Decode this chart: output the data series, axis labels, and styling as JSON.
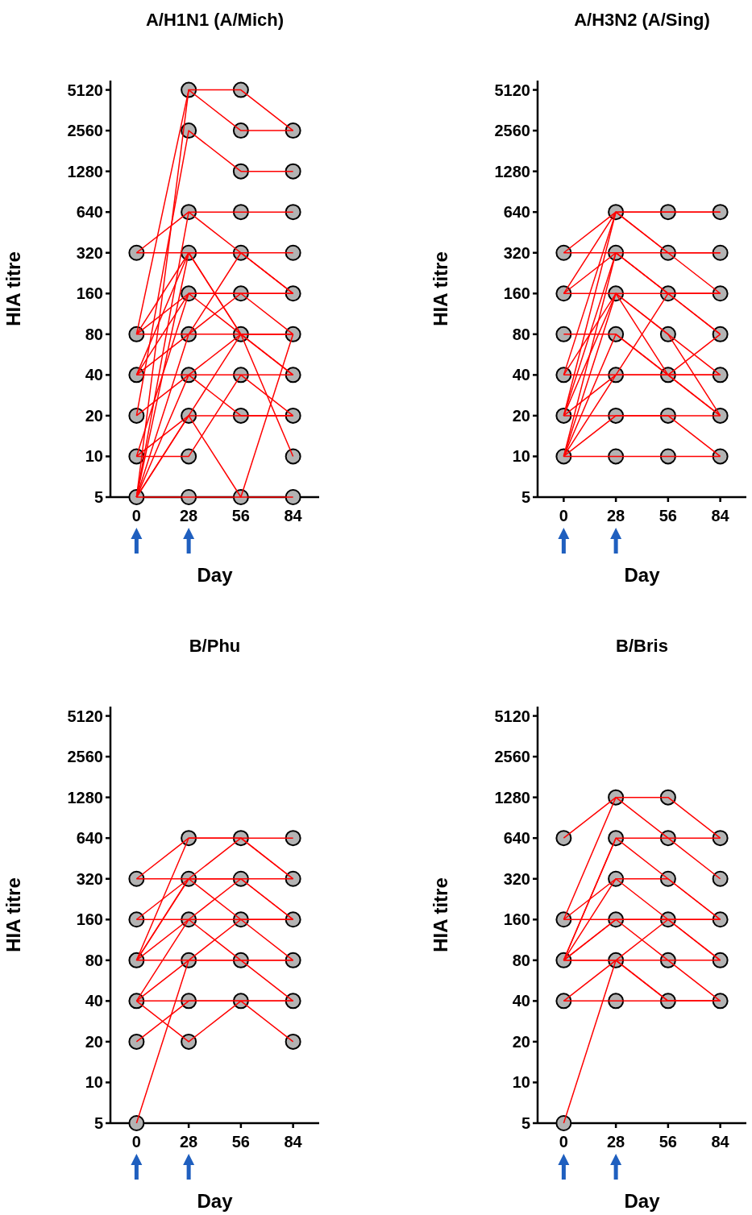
{
  "chart_data": [
    {
      "type": "line",
      "title": "A/H1N1 (A/Mich)",
      "xlabel": "Day",
      "ylabel": "HIA titre",
      "x": [
        0,
        28,
        56,
        84
      ],
      "xlim": [
        -14,
        98
      ],
      "xticks": [
        0,
        28,
        56,
        84
      ],
      "ylim": [
        5,
        6000
      ],
      "yticks": [
        5,
        10,
        20,
        40,
        80,
        160,
        320,
        640,
        1280,
        2560,
        5120
      ],
      "log": "y",
      "series": [
        {
          "color": "#ff0000",
          "values": [
            320,
            640,
            640,
            640
          ]
        },
        {
          "color": "#ff0000",
          "values": [
            320,
            320,
            320,
            320
          ]
        },
        {
          "color": "#ff0000",
          "values": [
            80,
            5120,
            5120,
            2560
          ]
        },
        {
          "color": "#ff0000",
          "values": [
            5,
            5120,
            2560,
            2560
          ]
        },
        {
          "color": "#ff0000",
          "values": [
            20,
            2560,
            1280,
            1280
          ]
        },
        {
          "color": "#ff0000",
          "values": [
            80,
            320,
            80,
            80
          ]
        },
        {
          "color": "#ff0000",
          "values": [
            80,
            160,
            160,
            160
          ]
        },
        {
          "color": "#ff0000",
          "values": [
            80,
            80,
            80,
            40
          ]
        },
        {
          "color": "#ff0000",
          "values": [
            40,
            320,
            320,
            160
          ]
        },
        {
          "color": "#ff0000",
          "values": [
            40,
            160,
            80,
            80
          ]
        },
        {
          "color": "#ff0000",
          "values": [
            40,
            80,
            320,
            160
          ]
        },
        {
          "color": "#ff0000",
          "values": [
            40,
            40,
            40,
            40
          ]
        },
        {
          "color": "#ff0000",
          "values": [
            10,
            160,
            160,
            80
          ]
        },
        {
          "color": "#ff0000",
          "values": [
            10,
            20,
            20,
            20
          ]
        },
        {
          "color": "#ff0000",
          "values": [
            10,
            10,
            40,
            20
          ]
        },
        {
          "color": "#ff0000",
          "values": [
            5,
            640,
            320,
            160
          ]
        },
        {
          "color": "#ff0000",
          "values": [
            5,
            80,
            160,
            160
          ]
        },
        {
          "color": "#ff0000",
          "values": [
            5,
            40,
            80,
            10
          ]
        },
        {
          "color": "#ff0000",
          "values": [
            5,
            20,
            5,
            80
          ]
        },
        {
          "color": "#ff0000",
          "values": [
            5,
            5,
            5,
            5
          ]
        },
        {
          "color": "#ff0000",
          "values": [
            5,
            320,
            80,
            40
          ]
        },
        {
          "color": "#ff0000",
          "values": [
            20,
            40,
            20,
            20
          ]
        },
        {
          "color": "#ff0000",
          "values": [
            5,
            20,
            80,
            80
          ]
        },
        {
          "type": "scatter",
          "marker": "circle",
          "color": "#b3b3b3",
          "x": [
            0,
            0,
            0,
            0,
            0,
            0,
            28,
            28,
            28,
            28,
            28,
            28,
            28,
            28,
            28,
            28,
            56,
            56,
            56,
            56,
            56,
            56,
            56,
            56,
            56,
            56,
            84,
            84,
            84,
            84,
            84,
            84,
            84,
            84,
            84,
            84
          ],
          "values": [
            320,
            80,
            40,
            20,
            10,
            5,
            5120,
            2560,
            640,
            320,
            160,
            80,
            40,
            20,
            10,
            5,
            5120,
            2560,
            1280,
            640,
            320,
            160,
            80,
            40,
            20,
            5,
            2560,
            1280,
            640,
            320,
            160,
            80,
            40,
            20,
            10,
            5
          ]
        }
      ]
    },
    {
      "type": "line",
      "title": "A/H3N2 (A/Sing)",
      "xlabel": "Day",
      "ylabel": "HIA titre",
      "x": [
        0,
        28,
        56,
        84
      ],
      "xlim": [
        -14,
        98
      ],
      "xticks": [
        0,
        28,
        56,
        84
      ],
      "ylim": [
        5,
        6000
      ],
      "yticks": [
        5,
        10,
        20,
        40,
        80,
        160,
        320,
        640,
        1280,
        2560,
        5120
      ],
      "log": "y",
      "series": [
        {
          "color": "#ff0000",
          "values": [
            320,
            640,
            640,
            640
          ]
        },
        {
          "color": "#ff0000",
          "values": [
            320,
            320,
            320,
            320
          ]
        },
        {
          "color": "#ff0000",
          "values": [
            160,
            640,
            320,
            160
          ]
        },
        {
          "color": "#ff0000",
          "values": [
            160,
            320,
            160,
            80
          ]
        },
        {
          "color": "#ff0000",
          "values": [
            160,
            160,
            160,
            160
          ]
        },
        {
          "color": "#ff0000",
          "values": [
            80,
            80,
            40,
            40
          ]
        },
        {
          "color": "#ff0000",
          "values": [
            40,
            640,
            640,
            640
          ]
        },
        {
          "color": "#ff0000",
          "values": [
            40,
            160,
            80,
            20
          ]
        },
        {
          "color": "#ff0000",
          "values": [
            40,
            40,
            160,
            160
          ]
        },
        {
          "color": "#ff0000",
          "values": [
            20,
            640,
            320,
            320
          ]
        },
        {
          "color": "#ff0000",
          "values": [
            20,
            320,
            160,
            80
          ]
        },
        {
          "color": "#ff0000",
          "values": [
            20,
            160,
            80,
            40
          ]
        },
        {
          "color": "#ff0000",
          "values": [
            20,
            40,
            40,
            20
          ]
        },
        {
          "color": "#ff0000",
          "values": [
            20,
            20,
            20,
            20
          ]
        },
        {
          "color": "#ff0000",
          "values": [
            10,
            320,
            160,
            160
          ]
        },
        {
          "color": "#ff0000",
          "values": [
            10,
            160,
            40,
            80
          ]
        },
        {
          "color": "#ff0000",
          "values": [
            10,
            40,
            40,
            40
          ]
        },
        {
          "color": "#ff0000",
          "values": [
            10,
            20,
            20,
            10
          ]
        },
        {
          "color": "#ff0000",
          "values": [
            10,
            10,
            10,
            10
          ]
        },
        {
          "color": "#ff0000",
          "values": [
            10,
            80,
            40,
            20
          ]
        },
        {
          "type": "scatter",
          "marker": "circle",
          "color": "#b3b3b3",
          "x": [
            0,
            0,
            0,
            0,
            0,
            0,
            28,
            28,
            28,
            28,
            28,
            28,
            28,
            56,
            56,
            56,
            56,
            56,
            56,
            56,
            84,
            84,
            84,
            84,
            84,
            84,
            84
          ],
          "values": [
            320,
            160,
            80,
            40,
            20,
            10,
            640,
            320,
            160,
            80,
            40,
            20,
            10,
            640,
            320,
            160,
            80,
            40,
            20,
            10,
            640,
            320,
            160,
            80,
            40,
            20,
            10
          ]
        }
      ]
    },
    {
      "type": "line",
      "title": "B/Phu",
      "xlabel": "Day",
      "ylabel": "HIA titre",
      "x": [
        0,
        28,
        56,
        84
      ],
      "xlim": [
        -14,
        98
      ],
      "xticks": [
        0,
        28,
        56,
        84
      ],
      "ylim": [
        5,
        6000
      ],
      "yticks": [
        5,
        10,
        20,
        40,
        80,
        160,
        320,
        640,
        1280,
        2560,
        5120
      ],
      "log": "y",
      "series": [
        {
          "color": "#ff0000",
          "values": [
            320,
            640,
            640,
            640
          ]
        },
        {
          "color": "#ff0000",
          "values": [
            320,
            320,
            320,
            320
          ]
        },
        {
          "color": "#ff0000",
          "values": [
            160,
            320,
            640,
            320
          ]
        },
        {
          "color": "#ff0000",
          "values": [
            160,
            160,
            160,
            160
          ]
        },
        {
          "color": "#ff0000",
          "values": [
            80,
            640,
            640,
            320
          ]
        },
        {
          "color": "#ff0000",
          "values": [
            80,
            320,
            160,
            80
          ]
        },
        {
          "color": "#ff0000",
          "values": [
            80,
            160,
            320,
            160
          ]
        },
        {
          "color": "#ff0000",
          "values": [
            80,
            80,
            80,
            80
          ]
        },
        {
          "color": "#ff0000",
          "values": [
            40,
            160,
            80,
            40
          ]
        },
        {
          "color": "#ff0000",
          "values": [
            40,
            80,
            160,
            160
          ]
        },
        {
          "color": "#ff0000",
          "values": [
            40,
            40,
            40,
            20
          ]
        },
        {
          "color": "#ff0000",
          "values": [
            40,
            20,
            40,
            40
          ]
        },
        {
          "color": "#ff0000",
          "values": [
            20,
            40,
            40,
            40
          ]
        },
        {
          "color": "#ff0000",
          "values": [
            5,
            80,
            80,
            80
          ]
        },
        {
          "color": "#ff0000",
          "values": [
            80,
            320,
            320,
            160
          ]
        },
        {
          "type": "scatter",
          "marker": "circle",
          "color": "#b3b3b3",
          "x": [
            0,
            0,
            0,
            0,
            0,
            0,
            28,
            28,
            28,
            28,
            28,
            28,
            56,
            56,
            56,
            56,
            56,
            84,
            84,
            84,
            84,
            84,
            84
          ],
          "values": [
            320,
            160,
            80,
            40,
            20,
            5,
            640,
            320,
            160,
            80,
            40,
            20,
            640,
            320,
            160,
            80,
            40,
            640,
            320,
            160,
            80,
            40,
            20
          ]
        }
      ]
    },
    {
      "type": "line",
      "title": "B/Bris",
      "xlabel": "Day",
      "ylabel": "HIA titre",
      "x": [
        0,
        28,
        56,
        84
      ],
      "xlim": [
        -14,
        98
      ],
      "xticks": [
        0,
        28,
        56,
        84
      ],
      "ylim": [
        5,
        6000
      ],
      "yticks": [
        5,
        10,
        20,
        40,
        80,
        160,
        320,
        640,
        1280,
        2560,
        5120
      ],
      "log": "y",
      "series": [
        {
          "color": "#ff0000",
          "values": [
            640,
            1280,
            1280,
            640
          ]
        },
        {
          "color": "#ff0000",
          "values": [
            160,
            1280,
            640,
            320
          ]
        },
        {
          "color": "#ff0000",
          "values": [
            160,
            320,
            320,
            160
          ]
        },
        {
          "color": "#ff0000",
          "values": [
            160,
            160,
            160,
            160
          ]
        },
        {
          "color": "#ff0000",
          "values": [
            80,
            640,
            640,
            640
          ]
        },
        {
          "color": "#ff0000",
          "values": [
            80,
            640,
            320,
            160
          ]
        },
        {
          "color": "#ff0000",
          "values": [
            80,
            320,
            160,
            80
          ]
        },
        {
          "color": "#ff0000",
          "values": [
            80,
            160,
            80,
            40
          ]
        },
        {
          "color": "#ff0000",
          "values": [
            80,
            80,
            80,
            80
          ]
        },
        {
          "color": "#ff0000",
          "values": [
            40,
            80,
            160,
            160
          ]
        },
        {
          "color": "#ff0000",
          "values": [
            40,
            40,
            40,
            40
          ]
        },
        {
          "color": "#ff0000",
          "values": [
            5,
            80,
            40,
            40
          ]
        },
        {
          "color": "#ff0000",
          "values": [
            80,
            160,
            160,
            80
          ]
        },
        {
          "color": "#ff0000",
          "values": [
            80,
            80,
            40,
            40
          ]
        },
        {
          "type": "scatter",
          "marker": "circle",
          "color": "#b3b3b3",
          "x": [
            0,
            0,
            0,
            0,
            0,
            28,
            28,
            28,
            28,
            28,
            28,
            56,
            56,
            56,
            56,
            56,
            56,
            84,
            84,
            84,
            84,
            84
          ],
          "values": [
            640,
            160,
            80,
            40,
            5,
            1280,
            640,
            320,
            160,
            80,
            40,
            1280,
            640,
            320,
            160,
            80,
            40,
            640,
            320,
            160,
            80,
            40
          ]
        }
      ]
    }
  ]
}
